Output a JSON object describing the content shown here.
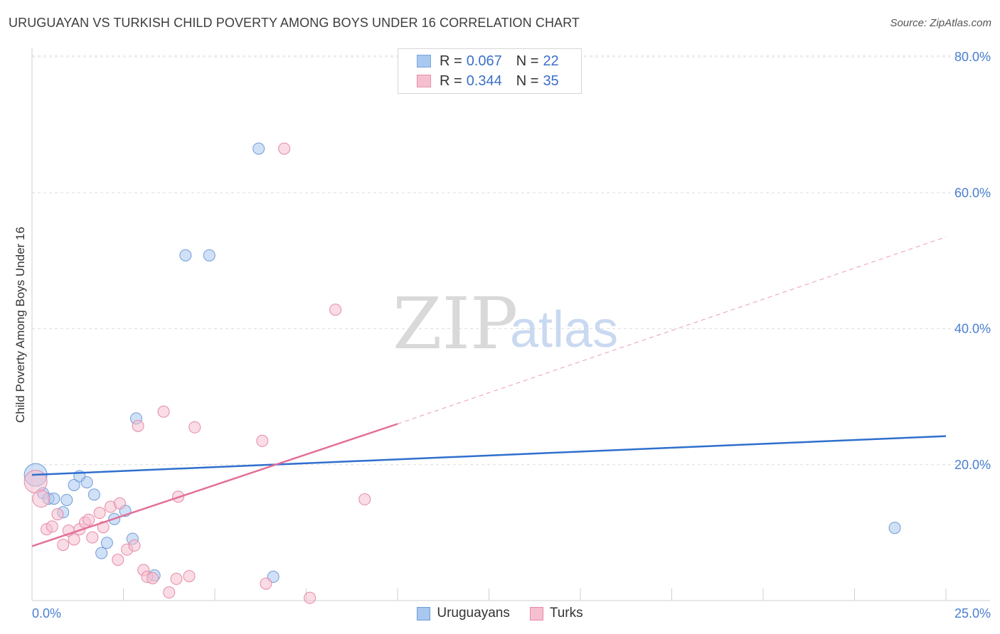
{
  "title": "URUGUAYAN VS TURKISH CHILD POVERTY AMONG BOYS UNDER 16 CORRELATION CHART",
  "source": "Source: ZipAtlas.com",
  "watermark": {
    "zip": "ZIP",
    "atlas": "atlas"
  },
  "legend": {
    "rows": [
      {
        "r_label": "R =",
        "r_value": "0.067",
        "n_label": "N =",
        "n_value": "22",
        "color": "#a9c8f0",
        "border": "#7aa6df"
      },
      {
        "r_label": "R =",
        "r_value": "0.344",
        "n_label": "N =",
        "n_value": "35",
        "color": "#f6bfd0",
        "border": "#ea8fab"
      }
    ]
  },
  "bottom_legend": [
    {
      "label": "Uruguayans",
      "color": "#a9c8f0",
      "border": "#6f9bd6"
    },
    {
      "label": "Turks",
      "color": "#f6bfd0",
      "border": "#e48aa7"
    }
  ],
  "chart_data": {
    "type": "scatter",
    "title": "URUGUAYAN VS TURKISH CHILD POVERTY AMONG BOYS UNDER 16 CORRELATION CHART",
    "xlabel": "",
    "ylabel": "Child Poverty Among Boys Under 16",
    "xlim": [
      0,
      25
    ],
    "ylim": [
      0,
      80
    ],
    "x_tick_labels": [
      "0.0%",
      "25.0%"
    ],
    "y_ticks": [
      20,
      40,
      60,
      80
    ],
    "y_tick_labels": [
      "20.0%",
      "40.0%",
      "60.0%",
      "80.0%"
    ],
    "series": [
      {
        "name": "Uruguayans",
        "color": "#a9c8f0",
        "stroke": "#6f9bd6",
        "trend_color": "#2f6fce",
        "trend": {
          "x0": 0,
          "y0": 18.5,
          "x1": 25,
          "y1": 24.2
        },
        "points": [
          [
            0.1,
            18.5,
            "big"
          ],
          [
            0.3,
            15.8
          ],
          [
            0.45,
            15.0
          ],
          [
            0.6,
            15.0
          ],
          [
            0.85,
            13.0
          ],
          [
            0.95,
            14.8
          ],
          [
            1.15,
            17.0
          ],
          [
            1.3,
            18.3
          ],
          [
            1.5,
            17.4
          ],
          [
            1.7,
            15.6
          ],
          [
            1.9,
            7.0
          ],
          [
            2.05,
            8.5
          ],
          [
            2.25,
            12.0
          ],
          [
            2.55,
            13.2
          ],
          [
            2.75,
            9.1
          ],
          [
            2.85,
            26.8
          ],
          [
            3.35,
            3.7
          ],
          [
            4.2,
            50.8
          ],
          [
            4.85,
            50.8
          ],
          [
            6.2,
            66.5
          ],
          [
            6.6,
            3.5
          ],
          [
            23.6,
            10.7
          ]
        ]
      },
      {
        "name": "Turks",
        "color": "#f6bfd0",
        "stroke": "#e48aa7",
        "trend_color": "#e36f97",
        "trend": {
          "x0": 0,
          "y0": 8.0,
          "x1": 10,
          "y1": 26.0
        },
        "trend_extension": {
          "x0": 10,
          "y0": 26.0,
          "x1": 25,
          "y1": 53.5
        },
        "points": [
          [
            0.1,
            17.5,
            "big"
          ],
          [
            0.25,
            15.0,
            "mid"
          ],
          [
            0.4,
            10.5
          ],
          [
            0.55,
            10.9
          ],
          [
            0.7,
            12.7
          ],
          [
            0.85,
            8.2
          ],
          [
            1.0,
            10.3
          ],
          [
            1.15,
            9.0
          ],
          [
            1.3,
            10.5
          ],
          [
            1.45,
            11.5
          ],
          [
            1.55,
            11.9
          ],
          [
            1.65,
            9.3
          ],
          [
            1.85,
            12.9
          ],
          [
            1.95,
            10.8
          ],
          [
            2.15,
            13.8
          ],
          [
            2.35,
            6.0
          ],
          [
            2.4,
            14.3
          ],
          [
            2.6,
            7.5
          ],
          [
            2.8,
            8.1
          ],
          [
            2.9,
            25.7
          ],
          [
            3.05,
            4.5
          ],
          [
            3.15,
            3.5
          ],
          [
            3.3,
            3.3
          ],
          [
            3.6,
            27.8
          ],
          [
            3.75,
            1.2
          ],
          [
            3.95,
            3.2
          ],
          [
            4.0,
            15.3
          ],
          [
            4.3,
            3.6
          ],
          [
            4.45,
            25.5
          ],
          [
            6.3,
            23.5
          ],
          [
            6.4,
            2.5
          ],
          [
            6.9,
            66.5
          ],
          [
            7.6,
            0.4
          ],
          [
            8.3,
            42.8
          ],
          [
            9.1,
            14.9
          ]
        ]
      }
    ]
  }
}
